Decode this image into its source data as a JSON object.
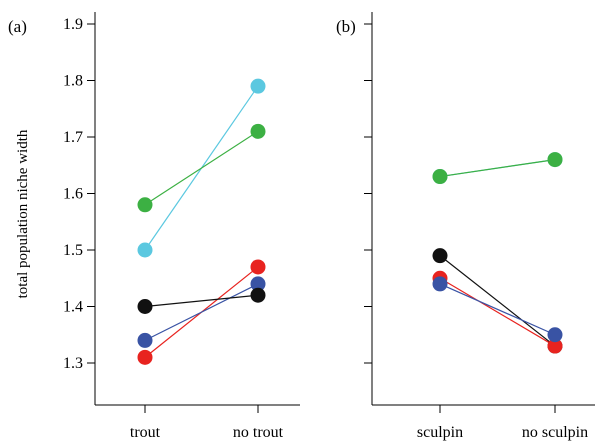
{
  "chart_data": [
    {
      "type": "line",
      "panel_label": "(a)",
      "ylabel": "total population niche width",
      "categories": [
        "trout",
        "no trout"
      ],
      "ylim": [
        1.25,
        1.92
      ],
      "yticks": [
        "1.3",
        "1.4",
        "1.5",
        "1.6",
        "1.7",
        "1.8",
        "1.9"
      ],
      "grid": false,
      "series": [
        {
          "color": "#5bc8e0",
          "values": [
            1.5,
            1.79
          ]
        },
        {
          "color": "#3cb043",
          "values": [
            1.58,
            1.71
          ]
        },
        {
          "color": "#e8231f",
          "values": [
            1.31,
            1.47
          ]
        },
        {
          "color": "#3953a4",
          "values": [
            1.34,
            1.44
          ]
        },
        {
          "color": "#111111",
          "values": [
            1.4,
            1.42
          ]
        }
      ]
    },
    {
      "type": "line",
      "panel_label": "(b)",
      "ylabel": "",
      "categories": [
        "sculpin",
        "no sculpin"
      ],
      "ylim": [
        1.25,
        1.92
      ],
      "yticks": [],
      "grid": false,
      "series": [
        {
          "color": "#5bc8e0",
          "values": [
            1.63,
            1.66
          ]
        },
        {
          "color": "#3cb043",
          "values": [
            1.63,
            1.66
          ]
        },
        {
          "color": "#111111",
          "values": [
            1.49,
            1.33
          ]
        },
        {
          "color": "#e8231f",
          "values": [
            1.45,
            1.33
          ]
        },
        {
          "color": "#3953a4",
          "values": [
            1.44,
            1.35
          ]
        }
      ]
    }
  ]
}
